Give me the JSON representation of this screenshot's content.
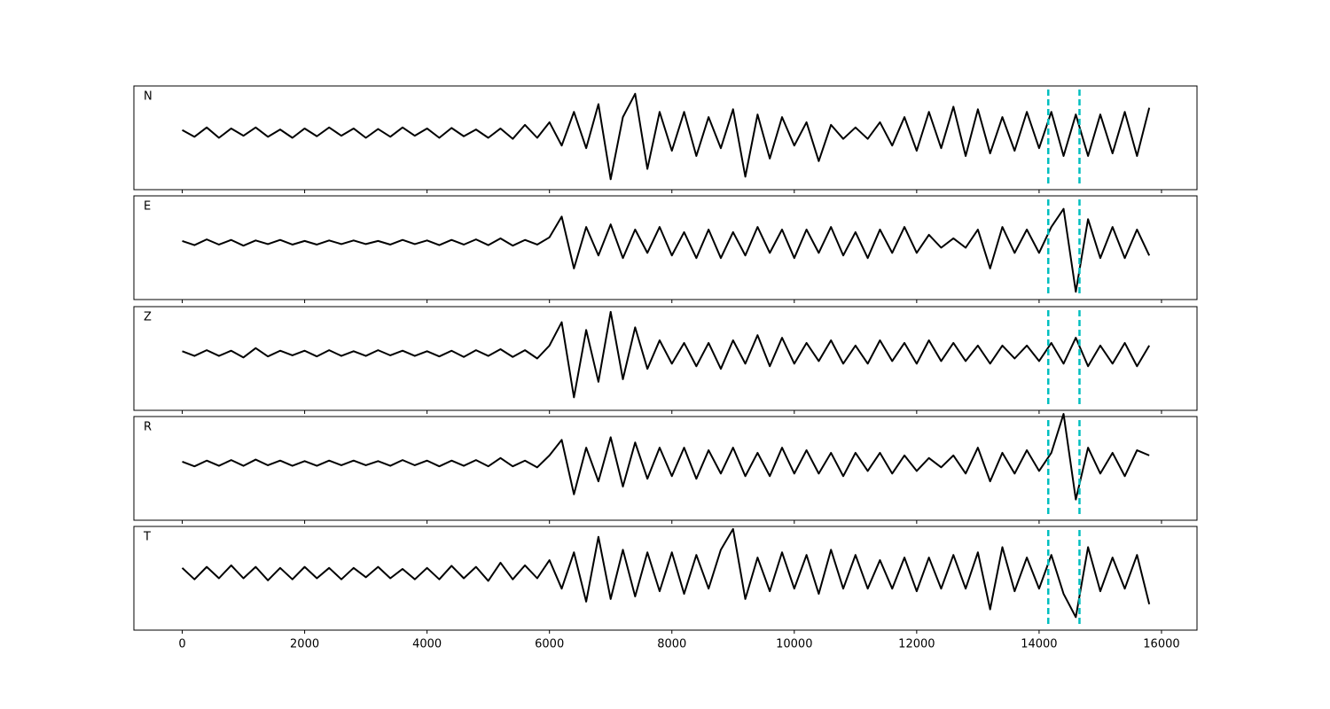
{
  "chart_data": {
    "type": "line",
    "layout": "panels",
    "x": [
      0,
      200,
      400,
      600,
      800,
      1000,
      1200,
      1400,
      1600,
      1800,
      2000,
      2200,
      2400,
      2600,
      2800,
      3000,
      3200,
      3400,
      3600,
      3800,
      4000,
      4200,
      4400,
      4600,
      4800,
      5000,
      5200,
      5400,
      5600,
      5800,
      6000,
      6200,
      6400,
      6600,
      6800,
      7000,
      7200,
      7400,
      7600,
      7800,
      8000,
      8200,
      8400,
      8600,
      8800,
      9000,
      9200,
      9400,
      9600,
      9800,
      10000,
      10200,
      10400,
      10600,
      10800,
      11000,
      11200,
      11400,
      11600,
      11800,
      12000,
      12200,
      12400,
      12600,
      12800,
      13000,
      13200,
      13400,
      13600,
      13800,
      14000,
      14200,
      14400,
      14600,
      14800,
      15000,
      15200,
      15400,
      15600,
      15800
    ],
    "xlim": [
      -790,
      16580
    ],
    "xticks": [
      0,
      2000,
      4000,
      6000,
      8000,
      10000,
      12000,
      14000,
      16000
    ],
    "ylim": [
      -1.1,
      0.9
    ],
    "series": [
      {
        "name": "N",
        "color": "#000000",
        "values": [
          0.05,
          -0.08,
          0.1,
          -0.1,
          0.08,
          -0.06,
          0.1,
          -0.08,
          0.06,
          -0.1,
          0.08,
          -0.07,
          0.1,
          -0.06,
          0.08,
          -0.1,
          0.07,
          -0.08,
          0.1,
          -0.06,
          0.08,
          -0.1,
          0.09,
          -0.07,
          0.06,
          -0.1,
          0.08,
          -0.12,
          0.15,
          -0.1,
          0.2,
          -0.25,
          0.4,
          -0.3,
          0.55,
          -0.9,
          0.3,
          0.75,
          -0.7,
          0.4,
          -0.35,
          0.4,
          -0.45,
          0.3,
          -0.3,
          0.45,
          -0.85,
          0.35,
          -0.5,
          0.3,
          -0.25,
          0.2,
          -0.55,
          0.15,
          -0.12,
          0.1,
          -0.12,
          0.2,
          -0.25,
          0.3,
          -0.35,
          0.4,
          -0.3,
          0.5,
          -0.45,
          0.45,
          -0.4,
          0.3,
          -0.35,
          0.4,
          -0.3,
          0.4,
          -0.45,
          0.35,
          -0.45,
          0.35,
          -0.4,
          0.4,
          -0.45,
          0.48
        ]
      },
      {
        "name": "E",
        "color": "#000000",
        "values": [
          0.03,
          -0.05,
          0.06,
          -0.04,
          0.05,
          -0.06,
          0.04,
          -0.03,
          0.05,
          -0.04,
          0.03,
          -0.04,
          0.04,
          -0.03,
          0.04,
          -0.03,
          0.03,
          -0.04,
          0.05,
          -0.03,
          0.04,
          -0.05,
          0.05,
          -0.04,
          0.06,
          -0.05,
          0.08,
          -0.06,
          0.05,
          -0.04,
          0.1,
          0.5,
          -0.5,
          0.3,
          -0.25,
          0.35,
          -0.3,
          0.25,
          -0.2,
          0.3,
          -0.25,
          0.2,
          -0.3,
          0.25,
          -0.3,
          0.2,
          -0.25,
          0.3,
          -0.2,
          0.25,
          -0.3,
          0.25,
          -0.2,
          0.3,
          -0.25,
          0.2,
          -0.3,
          0.25,
          -0.2,
          0.3,
          -0.2,
          0.15,
          -0.1,
          0.08,
          -0.1,
          0.25,
          -0.5,
          0.3,
          -0.2,
          0.25,
          -0.2,
          0.3,
          0.65,
          -0.95,
          0.45,
          -0.3,
          0.3,
          -0.3,
          0.25,
          -0.25
        ]
      },
      {
        "name": "Z",
        "color": "#000000",
        "values": [
          0.04,
          -0.05,
          0.06,
          -0.05,
          0.05,
          -0.08,
          0.1,
          -0.06,
          0.05,
          -0.04,
          0.05,
          -0.06,
          0.06,
          -0.05,
          0.04,
          -0.05,
          0.06,
          -0.04,
          0.05,
          -0.05,
          0.04,
          -0.06,
          0.05,
          -0.07,
          0.06,
          -0.05,
          0.08,
          -0.07,
          0.06,
          -0.1,
          0.15,
          0.6,
          -0.85,
          0.45,
          -0.55,
          0.8,
          -0.5,
          0.5,
          -0.3,
          0.25,
          -0.2,
          0.2,
          -0.25,
          0.2,
          -0.3,
          0.25,
          -0.2,
          0.35,
          -0.25,
          0.3,
          -0.2,
          0.2,
          -0.15,
          0.25,
          -0.2,
          0.15,
          -0.2,
          0.25,
          -0.15,
          0.2,
          -0.2,
          0.25,
          -0.15,
          0.2,
          -0.15,
          0.15,
          -0.2,
          0.15,
          -0.1,
          0.15,
          -0.15,
          0.2,
          -0.2,
          0.3,
          -0.25,
          0.15,
          -0.2,
          0.2,
          -0.25,
          0.15
        ]
      },
      {
        "name": "R",
        "color": "#000000",
        "values": [
          0.03,
          -0.06,
          0.05,
          -0.05,
          0.06,
          -0.05,
          0.07,
          -0.04,
          0.05,
          -0.05,
          0.04,
          -0.05,
          0.05,
          -0.04,
          0.05,
          -0.04,
          0.04,
          -0.05,
          0.06,
          -0.04,
          0.05,
          -0.06,
          0.05,
          -0.05,
          0.06,
          -0.06,
          0.1,
          -0.06,
          0.05,
          -0.08,
          0.15,
          0.45,
          -0.6,
          0.3,
          -0.35,
          0.5,
          -0.45,
          0.4,
          -0.3,
          0.3,
          -0.25,
          0.3,
          -0.3,
          0.25,
          -0.2,
          0.3,
          -0.25,
          0.2,
          -0.25,
          0.3,
          -0.2,
          0.25,
          -0.2,
          0.2,
          -0.25,
          0.2,
          -0.15,
          0.2,
          -0.2,
          0.15,
          -0.15,
          0.1,
          -0.08,
          0.15,
          -0.2,
          0.3,
          -0.35,
          0.2,
          -0.2,
          0.25,
          -0.15,
          0.2,
          0.95,
          -0.7,
          0.3,
          -0.2,
          0.2,
          -0.25,
          0.25,
          0.15
        ]
      },
      {
        "name": "T",
        "color": "#000000",
        "values": [
          0.1,
          -0.12,
          0.12,
          -0.1,
          0.15,
          -0.1,
          0.12,
          -0.14,
          0.1,
          -0.12,
          0.12,
          -0.1,
          0.1,
          -0.12,
          0.1,
          -0.08,
          0.12,
          -0.1,
          0.08,
          -0.12,
          0.1,
          -0.12,
          0.14,
          -0.1,
          0.12,
          -0.15,
          0.2,
          -0.12,
          0.15,
          -0.1,
          0.25,
          -0.3,
          0.4,
          -0.55,
          0.7,
          -0.5,
          0.45,
          -0.45,
          0.4,
          -0.35,
          0.4,
          -0.4,
          0.35,
          -0.3,
          0.45,
          0.85,
          -0.5,
          0.3,
          -0.35,
          0.4,
          -0.3,
          0.35,
          -0.4,
          0.45,
          -0.3,
          0.35,
          -0.3,
          0.25,
          -0.3,
          0.3,
          -0.35,
          0.3,
          -0.3,
          0.35,
          -0.3,
          0.4,
          -0.7,
          0.5,
          -0.35,
          0.3,
          -0.3,
          0.35,
          -0.4,
          -0.85,
          0.5,
          -0.35,
          0.3,
          -0.3,
          0.35,
          -0.6
        ]
      }
    ],
    "vlines": [
      14150,
      14660
    ],
    "vline_color": "#00bfbf"
  }
}
